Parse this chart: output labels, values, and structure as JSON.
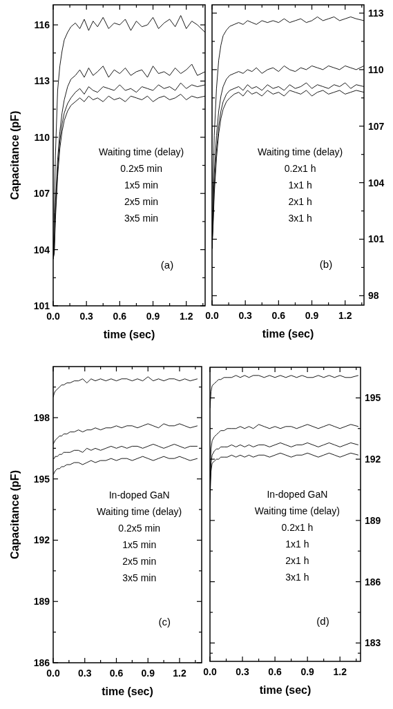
{
  "chart_data": [
    {
      "type": "line",
      "xlabel": "time (sec)",
      "ylabel": "Capacitance (pF)",
      "annotations": [
        "Waiting time (delay)",
        "0.2x5 min",
        "1x5 min",
        "2x5 min",
        "3x5 min",
        "(a)"
      ],
      "x": [
        0,
        0.01,
        0.02,
        0.04,
        0.06,
        0.08,
        0.1,
        0.13,
        0.16,
        0.2,
        0.24,
        0.28,
        0.32,
        0.36,
        0.4,
        0.45,
        0.5,
        0.55,
        0.6,
        0.65,
        0.7,
        0.75,
        0.8,
        0.85,
        0.9,
        0.95,
        1.0,
        1.05,
        1.1,
        1.15,
        1.2,
        1.25,
        1.3,
        1.37
      ],
      "xlim": [
        0,
        1.37
      ],
      "xticks": [
        {
          "value": 0,
          "label": "0.0"
        },
        {
          "value": 0.15,
          "label": null
        },
        {
          "value": 0.3,
          "label": "0.3"
        },
        {
          "value": 0.45,
          "label": null
        },
        {
          "value": 0.6,
          "label": "0.6"
        },
        {
          "value": 0.75,
          "label": null
        },
        {
          "value": 0.9,
          "label": "0.9"
        },
        {
          "value": 1.05,
          "label": null
        },
        {
          "value": 1.2,
          "label": "1.2"
        },
        {
          "value": 1.35,
          "label": null
        }
      ],
      "ylim": [
        101,
        117.07
      ],
      "yticks": [
        101,
        {
          "value": 102.5,
          "label": null
        },
        104,
        {
          "value": 105.5,
          "label": null
        },
        107,
        {
          "value": 108.5,
          "label": null
        },
        110,
        {
          "value": 111.5,
          "label": null
        },
        113,
        {
          "value": 114.5,
          "label": null
        },
        116
      ],
      "series": [
        {
          "color": "#000000",
          "values": [
            103.5,
            106,
            109,
            112.5,
            113.8,
            114.6,
            115.2,
            115.6,
            115.9,
            116.1,
            115.8,
            116.3,
            115.7,
            116.2,
            115.9,
            116.4,
            115.8,
            116.1,
            116.0,
            116.3,
            115.7,
            116.2,
            115.9,
            116.0,
            116.4,
            115.8,
            116.1,
            116.3,
            115.9,
            116.5,
            115.8,
            116.2,
            116.0,
            115.6
          ]
        },
        {
          "color": "#000000",
          "values": [
            103.5,
            104.5,
            106.5,
            108.8,
            110.3,
            111.3,
            112.0,
            112.7,
            113.1,
            113.3,
            113.6,
            113.2,
            113.7,
            113.3,
            113.5,
            113.8,
            113.2,
            113.6,
            113.4,
            113.7,
            113.3,
            113.5,
            113.6,
            113.2,
            113.8,
            113.4,
            113.5,
            113.3,
            113.7,
            113.4,
            113.6,
            113.9,
            113.3,
            113.5
          ]
        },
        {
          "color": "#000000",
          "values": [
            103.5,
            104,
            106,
            108.3,
            109.8,
            110.7,
            111.3,
            111.8,
            112.1,
            112.4,
            112.6,
            112.3,
            112.7,
            112.5,
            112.4,
            112.7,
            112.6,
            112.5,
            112.8,
            112.5,
            112.6,
            112.4,
            112.7,
            112.6,
            112.5,
            112.8,
            112.6,
            112.7,
            112.5,
            112.9,
            112.6,
            112.8,
            112.7,
            112.8
          ]
        },
        {
          "color": "#000000",
          "values": [
            103.5,
            103.8,
            105.6,
            107.9,
            109.4,
            110.3,
            110.9,
            111.4,
            111.7,
            111.9,
            112.1,
            111.9,
            112.2,
            112.0,
            112.1,
            111.9,
            112.2,
            112.0,
            112.1,
            111.9,
            112.2,
            112.1,
            112.0,
            112.2,
            111.9,
            112.1,
            112.2,
            112.0,
            112.1,
            112.3,
            112.0,
            112.2,
            112.1,
            112.2
          ]
        }
      ]
    },
    {
      "type": "line",
      "xlabel": "time (sec)",
      "annotations": [
        "Waiting time (delay)",
        "0.2x1 h",
        "1x1 h",
        "2x1 h",
        "3x1 h",
        "(b)"
      ],
      "x": [
        0,
        0.01,
        0.02,
        0.04,
        0.06,
        0.08,
        0.1,
        0.13,
        0.16,
        0.2,
        0.24,
        0.28,
        0.32,
        0.36,
        0.4,
        0.45,
        0.5,
        0.55,
        0.6,
        0.65,
        0.7,
        0.75,
        0.8,
        0.85,
        0.9,
        0.95,
        1.0,
        1.05,
        1.1,
        1.15,
        1.2,
        1.25,
        1.3,
        1.37
      ],
      "xlim": [
        0,
        1.37
      ],
      "xticks": [
        {
          "value": 0,
          "label": "0.0"
        },
        {
          "value": 0.15,
          "label": null
        },
        {
          "value": 0.3,
          "label": "0.3"
        },
        {
          "value": 0.45,
          "label": null
        },
        {
          "value": 0.6,
          "label": "0.6"
        },
        {
          "value": 0.75,
          "label": null
        },
        {
          "value": 0.9,
          "label": "0.9"
        },
        {
          "value": 1.05,
          "label": null
        },
        {
          "value": 1.2,
          "label": "1.2"
        },
        {
          "value": 1.35,
          "label": null
        }
      ],
      "y2lim": [
        97.5,
        113.44
      ],
      "y2ticks": [
        98,
        {
          "value": 99.5,
          "label": null
        },
        101,
        {
          "value": 102.5,
          "label": null
        },
        104,
        {
          "value": 105.5,
          "label": null
        },
        107,
        {
          "value": 108.5,
          "label": null
        },
        110,
        {
          "value": 111.5,
          "label": null
        },
        113
      ],
      "series": [
        {
          "color": "#000000",
          "axis": "y2",
          "values": [
            100.5,
            104,
            106.5,
            109,
            110.5,
            111.3,
            111.8,
            112.1,
            112.3,
            112.4,
            112.5,
            112.4,
            112.6,
            112.5,
            112.4,
            112.6,
            112.5,
            112.6,
            112.5,
            112.7,
            112.5,
            112.6,
            112.7,
            112.5,
            112.6,
            112.8,
            112.6,
            112.7,
            112.8,
            112.6,
            112.7,
            112.8,
            112.7,
            112.6
          ]
        },
        {
          "color": "#000000",
          "axis": "y2",
          "values": [
            100.5,
            102.5,
            104.5,
            106.5,
            107.8,
            108.6,
            109.1,
            109.5,
            109.7,
            109.8,
            109.9,
            109.8,
            110.0,
            109.9,
            110.1,
            109.8,
            110.0,
            110.1,
            109.9,
            110.2,
            110.0,
            109.9,
            110.1,
            110.0,
            110.2,
            110.1,
            110.0,
            110.2,
            110.1,
            110.0,
            110.2,
            110.1,
            110.0,
            110.2
          ]
        },
        {
          "color": "#000000",
          "axis": "y2",
          "values": [
            100.5,
            102,
            103.8,
            105.7,
            107,
            107.8,
            108.3,
            108.7,
            108.9,
            109.0,
            109.1,
            108.9,
            109.2,
            109.0,
            109.1,
            108.9,
            109.2,
            109.0,
            109.1,
            108.9,
            109.2,
            109.0,
            109.1,
            109.3,
            109.0,
            109.2,
            109.1,
            109.0,
            109.2,
            109.1,
            109.3,
            109.0,
            109.2,
            109.1
          ]
        },
        {
          "color": "#000000",
          "axis": "y2",
          "values": [
            100.5,
            101.8,
            103.4,
            105.3,
            106.6,
            107.4,
            107.9,
            108.3,
            108.5,
            108.7,
            108.8,
            108.6,
            108.9,
            108.7,
            108.8,
            108.6,
            108.9,
            108.7,
            108.8,
            108.6,
            108.9,
            108.8,
            108.7,
            108.9,
            108.6,
            108.8,
            108.9,
            108.7,
            108.8,
            108.9,
            108.7,
            108.8,
            108.9,
            108.8
          ]
        }
      ]
    },
    {
      "type": "line",
      "xlabel": "time (sec)",
      "ylabel": "Capacitance (pF)",
      "annotations": [
        "In-doped GaN",
        "Waiting time (delay)",
        "0.2x5 min",
        "1x5 min",
        "2x5 min",
        "3x5 min",
        "(c)"
      ],
      "x": [
        0,
        0.01,
        0.02,
        0.04,
        0.06,
        0.08,
        0.1,
        0.13,
        0.16,
        0.2,
        0.24,
        0.28,
        0.32,
        0.36,
        0.4,
        0.45,
        0.5,
        0.55,
        0.6,
        0.65,
        0.7,
        0.75,
        0.8,
        0.85,
        0.9,
        0.95,
        1.0,
        1.05,
        1.1,
        1.15,
        1.2,
        1.25,
        1.3,
        1.37
      ],
      "xlim": [
        0,
        1.41
      ],
      "xticks": [
        {
          "value": 0,
          "label": "0.0"
        },
        {
          "value": 0.15,
          "label": null
        },
        {
          "value": 0.3,
          "label": "0.3"
        },
        {
          "value": 0.45,
          "label": null
        },
        {
          "value": 0.6,
          "label": "0.6"
        },
        {
          "value": 0.75,
          "label": null
        },
        {
          "value": 0.9,
          "label": "0.9"
        },
        {
          "value": 1.05,
          "label": null
        },
        {
          "value": 1.2,
          "label": "1.2"
        },
        {
          "value": 1.35,
          "label": null
        }
      ],
      "ylim": [
        186,
        200.5
      ],
      "yticks": [
        186,
        {
          "value": 187.5,
          "label": null
        },
        189,
        {
          "value": 190.5,
          "label": null
        },
        192,
        {
          "value": 193.5,
          "label": null
        },
        195,
        {
          "value": 196.5,
          "label": null
        },
        198,
        {
          "value": 199.5,
          "label": null
        }
      ],
      "series": [
        {
          "color": "#000000",
          "values": [
            199.0,
            199.2,
            199.3,
            199.4,
            199.5,
            199.6,
            199.6,
            199.7,
            199.7,
            199.8,
            199.8,
            199.9,
            199.7,
            199.9,
            199.8,
            199.9,
            199.8,
            199.9,
            199.8,
            199.9,
            199.9,
            199.8,
            199.9,
            199.8,
            200.0,
            199.8,
            199.9,
            199.8,
            199.9,
            199.9,
            199.8,
            199.9,
            199.8,
            199.9
          ]
        },
        {
          "color": "#000000",
          "values": [
            196.7,
            196.8,
            196.9,
            197.0,
            197.1,
            197.1,
            197.2,
            197.2,
            197.3,
            197.3,
            197.4,
            197.3,
            197.4,
            197.4,
            197.5,
            197.4,
            197.5,
            197.5,
            197.6,
            197.5,
            197.6,
            197.6,
            197.5,
            197.6,
            197.7,
            197.6,
            197.5,
            197.7,
            197.6,
            197.6,
            197.7,
            197.6,
            197.5,
            197.6
          ]
        },
        {
          "color": "#000000",
          "values": [
            196.0,
            196.0,
            196.1,
            196.1,
            196.2,
            196.2,
            196.3,
            196.3,
            196.3,
            196.4,
            196.4,
            196.3,
            196.5,
            196.4,
            196.5,
            196.4,
            196.5,
            196.6,
            196.5,
            196.6,
            196.5,
            196.6,
            196.6,
            196.5,
            196.6,
            196.7,
            196.6,
            196.5,
            196.6,
            196.7,
            196.6,
            196.5,
            196.6,
            196.6
          ]
        },
        {
          "color": "#000000",
          "values": [
            195.2,
            195.3,
            195.4,
            195.5,
            195.5,
            195.6,
            195.6,
            195.7,
            195.7,
            195.8,
            195.8,
            195.7,
            195.8,
            195.9,
            195.8,
            195.9,
            195.9,
            196.0,
            195.9,
            196.0,
            196.0,
            195.9,
            196.0,
            196.1,
            196.0,
            195.9,
            196.0,
            196.1,
            196.0,
            196.0,
            196.1,
            196.0,
            195.9,
            196.0
          ]
        }
      ]
    },
    {
      "type": "line",
      "xlabel": "time (sec)",
      "annotations": [
        "In-doped GaN",
        "Waiting time (delay)",
        "0.2x1 h",
        "1x1 h",
        "2x1 h",
        "3x1 h",
        "(d)"
      ],
      "x": [
        0,
        0.01,
        0.02,
        0.04,
        0.06,
        0.08,
        0.1,
        0.13,
        0.16,
        0.2,
        0.24,
        0.28,
        0.32,
        0.36,
        0.4,
        0.45,
        0.5,
        0.55,
        0.6,
        0.65,
        0.7,
        0.75,
        0.8,
        0.85,
        0.9,
        0.95,
        1.0,
        1.05,
        1.1,
        1.15,
        1.2,
        1.25,
        1.3,
        1.37
      ],
      "xlim": [
        0,
        1.39
      ],
      "xticks": [
        {
          "value": 0,
          "label": "0.0"
        },
        {
          "value": 0.15,
          "label": null
        },
        {
          "value": 0.3,
          "label": "0.3"
        },
        {
          "value": 0.45,
          "label": null
        },
        {
          "value": 0.6,
          "label": "0.6"
        },
        {
          "value": 0.75,
          "label": null
        },
        {
          "value": 0.9,
          "label": "0.9"
        },
        {
          "value": 1.05,
          "label": null
        },
        {
          "value": 1.2,
          "label": "1.2"
        },
        {
          "value": 1.35,
          "label": null
        }
      ],
      "y2lim": [
        182.1,
        196.5
      ],
      "y2ticks": [
        {
          "value": 182.5,
          "label": null
        },
        183,
        {
          "value": 184.5,
          "label": null
        },
        186,
        {
          "value": 187.5,
          "label": null
        },
        189,
        {
          "value": 190.5,
          "label": null
        },
        192,
        {
          "value": 193.5,
          "label": null
        },
        195
      ],
      "series": [
        {
          "color": "#000000",
          "axis": "y2",
          "values": [
            194.5,
            195.3,
            195.6,
            195.7,
            195.8,
            195.9,
            195.9,
            196.0,
            196.0,
            196.0,
            196.1,
            196.0,
            196.1,
            196.0,
            196.1,
            196.1,
            196.0,
            196.1,
            196.0,
            196.1,
            196.0,
            196.1,
            196.0,
            196.1,
            196.0,
            196.0,
            196.1,
            196.0,
            196.1,
            196.0,
            196.1,
            196.0,
            196.0,
            196.1
          ]
        },
        {
          "color": "#000000",
          "axis": "y2",
          "values": [
            191.0,
            192.5,
            192.9,
            193.1,
            193.2,
            193.3,
            193.4,
            193.4,
            193.5,
            193.5,
            193.5,
            193.6,
            193.5,
            193.6,
            193.5,
            193.7,
            193.6,
            193.5,
            193.6,
            193.5,
            193.6,
            193.6,
            193.5,
            193.6,
            193.7,
            193.6,
            193.5,
            193.6,
            193.7,
            193.6,
            193.5,
            193.6,
            193.7,
            193.6
          ]
        },
        {
          "color": "#000000",
          "axis": "y2",
          "values": [
            190.5,
            191.8,
            192.2,
            192.4,
            192.5,
            192.5,
            192.6,
            192.6,
            192.6,
            192.7,
            192.6,
            192.7,
            192.6,
            192.7,
            192.6,
            192.7,
            192.7,
            192.6,
            192.7,
            192.8,
            192.7,
            192.6,
            192.7,
            192.7,
            192.8,
            192.7,
            192.6,
            192.7,
            192.8,
            192.7,
            192.6,
            192.7,
            192.8,
            192.7
          ]
        },
        {
          "color": "#000000",
          "axis": "y2",
          "values": [
            190.0,
            191.4,
            191.8,
            191.9,
            192.0,
            192.0,
            192.1,
            192.1,
            192.1,
            192.2,
            192.1,
            192.2,
            192.1,
            192.2,
            192.1,
            192.2,
            192.2,
            192.1,
            192.2,
            192.3,
            192.2,
            192.1,
            192.2,
            192.2,
            192.3,
            192.2,
            192.1,
            192.2,
            192.3,
            192.2,
            192.1,
            192.2,
            192.3,
            192.2
          ]
        }
      ]
    }
  ]
}
